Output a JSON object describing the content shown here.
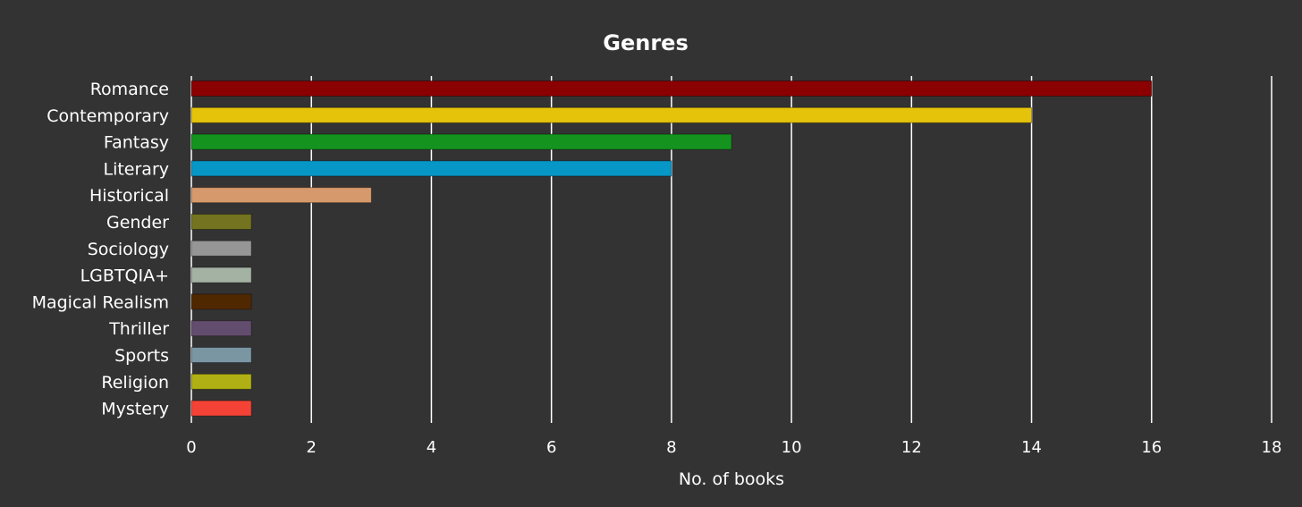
{
  "colors": {
    "background": "#333333",
    "text": "#ffffff",
    "gridline": "#ffffff"
  },
  "chart_data": {
    "type": "bar",
    "orientation": "horizontal",
    "title": "Genres",
    "xlabel": "No. of books",
    "ylabel": "",
    "xlim": [
      0,
      18
    ],
    "x_ticks": [
      0,
      2,
      4,
      6,
      8,
      10,
      12,
      14,
      16,
      18
    ],
    "grid": true,
    "categories": [
      "Romance",
      "Contemporary",
      "Fantasy",
      "Literary",
      "Historical",
      "Gender",
      "Sociology",
      "LGBTQIA+",
      "Magical Realism",
      "Thriller",
      "Sports",
      "Religion",
      "Mystery"
    ],
    "values": [
      16,
      14,
      9,
      8,
      3,
      1,
      1,
      1,
      1,
      1,
      1,
      1,
      1
    ],
    "bar_colors": [
      "#8b0000",
      "#e6c30b",
      "#14941e",
      "#0697c6",
      "#d6996c",
      "#737320",
      "#969696",
      "#a3b2a3",
      "#502800",
      "#634d6e",
      "#7a96a3",
      "#b0b014",
      "#f44336"
    ]
  }
}
